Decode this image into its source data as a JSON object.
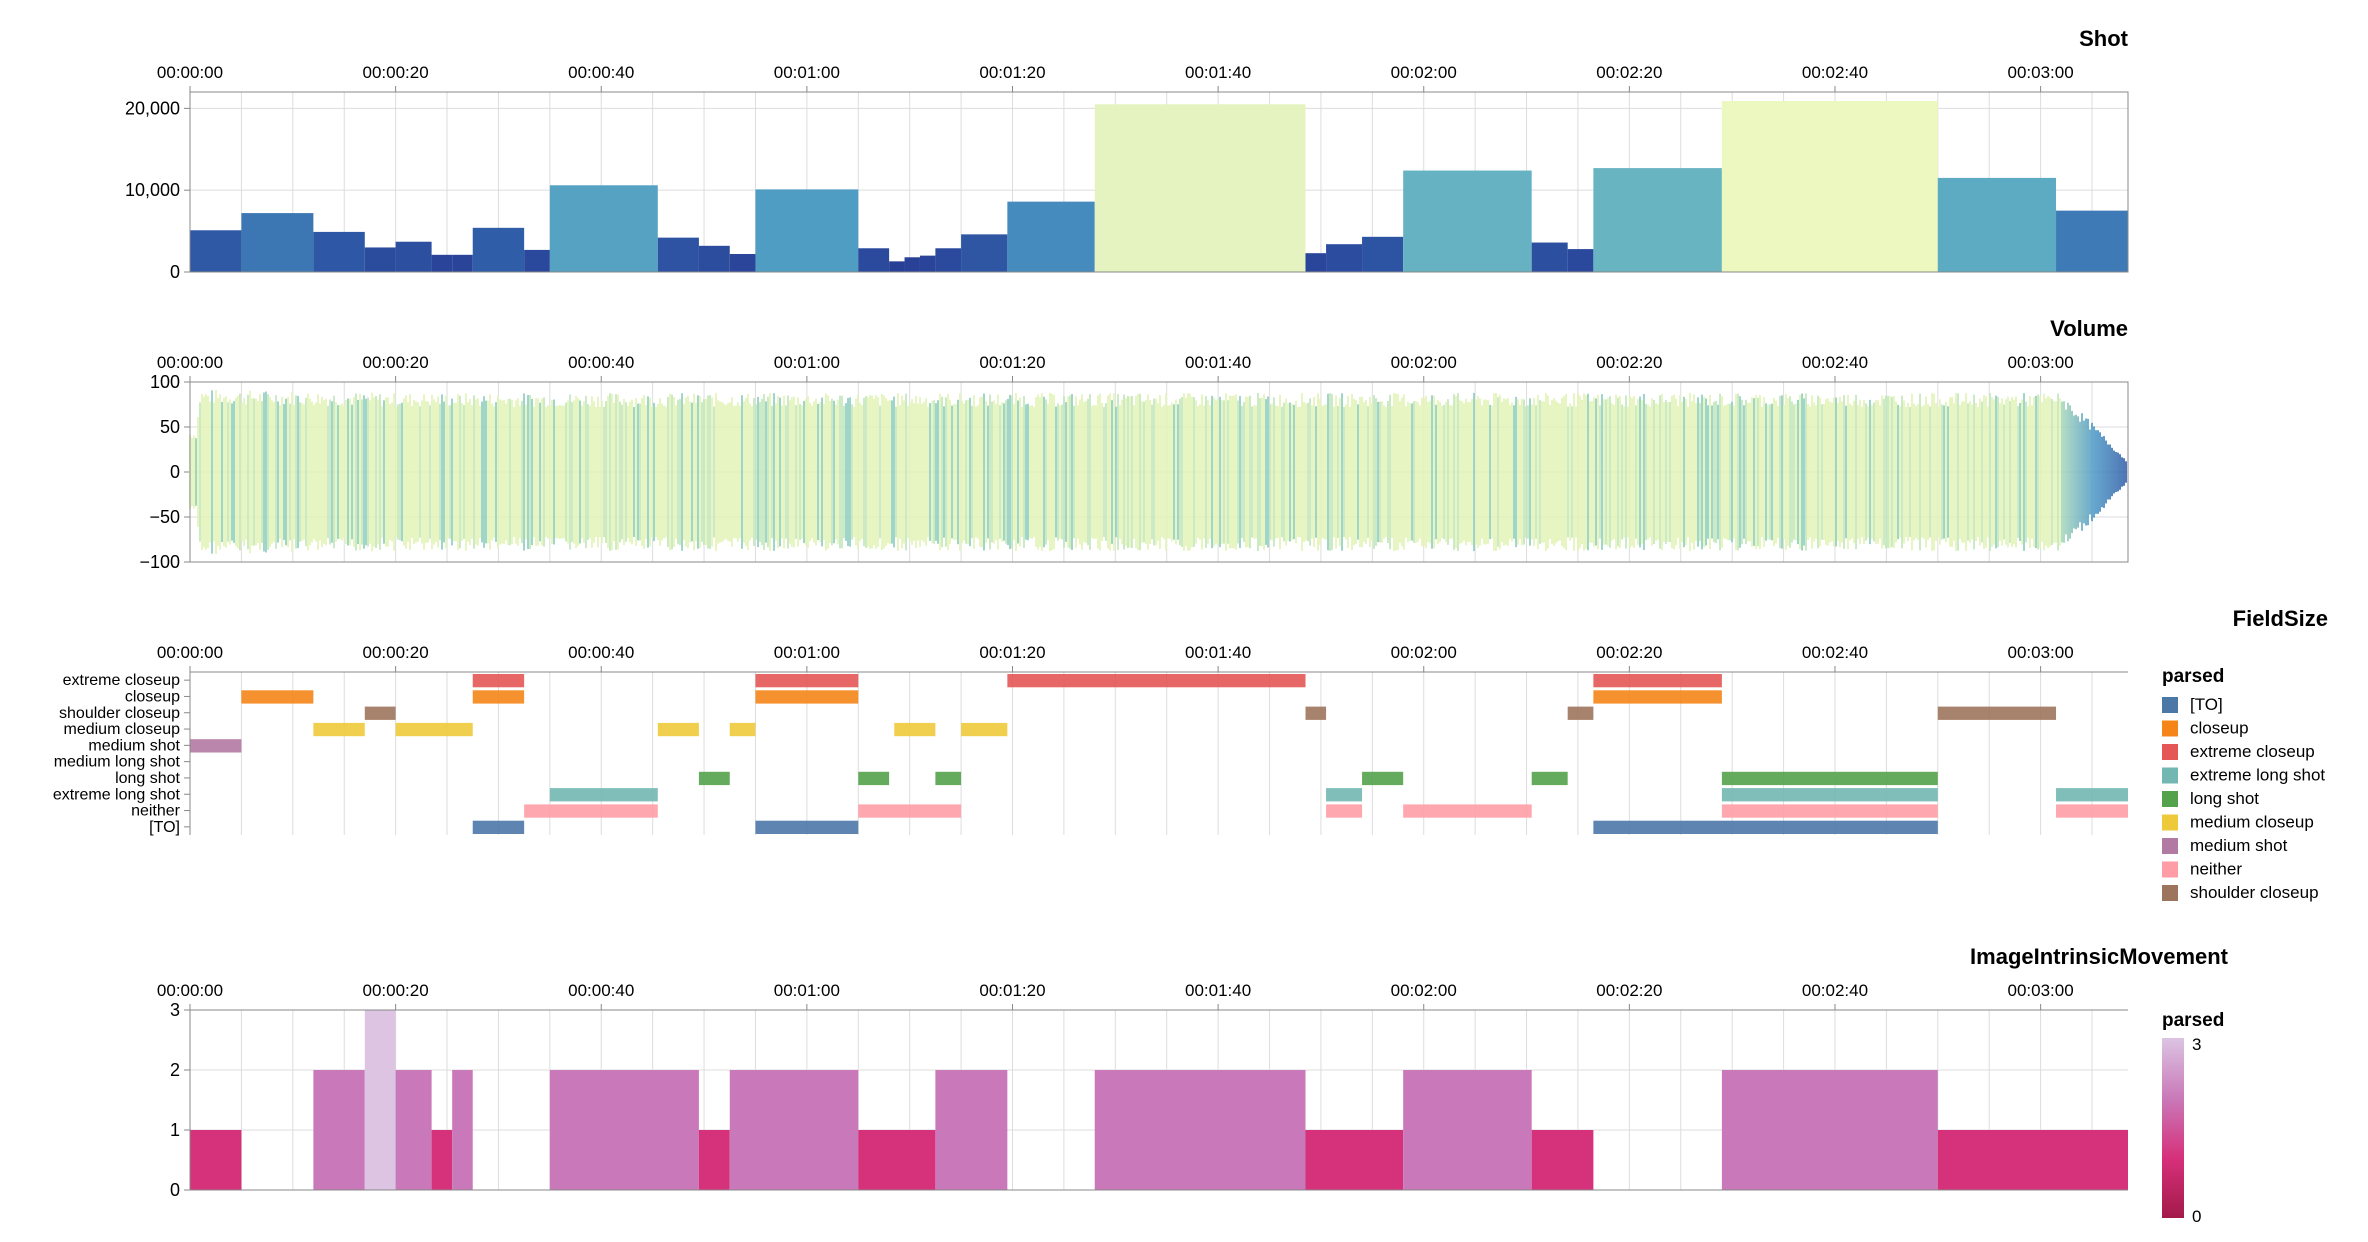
{
  "time_ticks": [
    "00:00:00",
    "00:00:20",
    "00:00:40",
    "00:01:00",
    "00:01:20",
    "00:01:40",
    "00:02:00",
    "00:02:20",
    "00:02:40",
    "00:03:00"
  ],
  "chart_data": [
    {
      "id": "shot",
      "type": "bar",
      "title": "Shot",
      "xlabel": "",
      "ylabel": "",
      "x_unit": "seconds",
      "xlim": [
        0,
        188.5
      ],
      "ylim": [
        0,
        22000
      ],
      "y_ticks": [
        0,
        10000,
        20000
      ],
      "y_tick_labels": [
        "0",
        "10,000",
        "20,000"
      ],
      "grid": true,
      "color_scale": "yellow-green-blue by value",
      "shots": [
        {
          "start": 0,
          "end": 5,
          "value": 5100
        },
        {
          "start": 5,
          "end": 12,
          "value": 7200
        },
        {
          "start": 12,
          "end": 17,
          "value": 4900
        },
        {
          "start": 17,
          "end": 20,
          "value": 3000
        },
        {
          "start": 20,
          "end": 23.5,
          "value": 3700
        },
        {
          "start": 23.5,
          "end": 25.5,
          "value": 2100
        },
        {
          "start": 25.5,
          "end": 27.5,
          "value": 2100
        },
        {
          "start": 27.5,
          "end": 32.5,
          "value": 5400
        },
        {
          "start": 32.5,
          "end": 35,
          "value": 2700
        },
        {
          "start": 35,
          "end": 45.5,
          "value": 10600
        },
        {
          "start": 45.5,
          "end": 49.5,
          "value": 4200
        },
        {
          "start": 49.5,
          "end": 52.5,
          "value": 3200
        },
        {
          "start": 52.5,
          "end": 55,
          "value": 2200
        },
        {
          "start": 55,
          "end": 65,
          "value": 10100
        },
        {
          "start": 65,
          "end": 68,
          "value": 2900
        },
        {
          "start": 68,
          "end": 69.5,
          "value": 1300
        },
        {
          "start": 69.5,
          "end": 71,
          "value": 1800
        },
        {
          "start": 71,
          "end": 72.5,
          "value": 2000
        },
        {
          "start": 72.5,
          "end": 75,
          "value": 2900
        },
        {
          "start": 75,
          "end": 79.5,
          "value": 4600
        },
        {
          "start": 79.5,
          "end": 88,
          "value": 8600
        },
        {
          "start": 88,
          "end": 108.5,
          "value": 20500
        },
        {
          "start": 108.5,
          "end": 110.5,
          "value": 2300
        },
        {
          "start": 110.5,
          "end": 114,
          "value": 3400
        },
        {
          "start": 114,
          "end": 118,
          "value": 4300
        },
        {
          "start": 118,
          "end": 130.5,
          "value": 12400
        },
        {
          "start": 130.5,
          "end": 134,
          "value": 3600
        },
        {
          "start": 134,
          "end": 136.5,
          "value": 2800
        },
        {
          "start": 136.5,
          "end": 149,
          "value": 12700
        },
        {
          "start": 149,
          "end": 170,
          "value": 20900
        },
        {
          "start": 170,
          "end": 181.5,
          "value": 11500
        },
        {
          "start": 181.5,
          "end": 188.5,
          "value": 7500
        }
      ]
    },
    {
      "id": "volume",
      "type": "area",
      "title": "Volume",
      "xlabel": "",
      "ylabel": "",
      "x_unit": "seconds",
      "xlim": [
        0,
        188.5
      ],
      "ylim": [
        -100,
        100
      ],
      "y_ticks": [
        -100,
        -50,
        0,
        50,
        100
      ],
      "y_tick_labels": [
        "−100",
        "−50",
        "0",
        "50",
        "100"
      ],
      "grid": true,
      "amplitude_envelope": [
        {
          "t": 0,
          "amp": 45
        },
        {
          "t": 0.6,
          "amp": 45
        },
        {
          "t": 1,
          "amp": 92
        },
        {
          "t": 20,
          "amp": 88
        },
        {
          "t": 60,
          "amp": 88
        },
        {
          "t": 100,
          "amp": 88
        },
        {
          "t": 140,
          "amp": 88
        },
        {
          "t": 182,
          "amp": 88
        },
        {
          "t": 185,
          "amp": 55
        },
        {
          "t": 188.5,
          "amp": 12
        }
      ]
    },
    {
      "id": "fieldsize",
      "type": "gantt",
      "title": "FieldSize",
      "xlabel": "",
      "ylabel": "",
      "x_unit": "seconds",
      "xlim": [
        0,
        188.5
      ],
      "grid": true,
      "categories": [
        "extreme closeup",
        "closeup",
        "shoulder closeup",
        "medium closeup",
        "medium shot",
        "medium long shot",
        "long shot",
        "extreme long shot",
        "neither",
        "[TO]"
      ],
      "legend_title": "parsed",
      "legend_position": "right",
      "legend": [
        {
          "label": "[TO]",
          "color": "#4c78a8"
        },
        {
          "label": "closeup",
          "color": "#f58518"
        },
        {
          "label": "extreme closeup",
          "color": "#e45756"
        },
        {
          "label": "extreme long shot",
          "color": "#72b7b2"
        },
        {
          "label": "long shot",
          "color": "#54a24b"
        },
        {
          "label": "medium closeup",
          "color": "#eeca3b"
        },
        {
          "label": "medium shot",
          "color": "#b279a2"
        },
        {
          "label": "neither",
          "color": "#ff9da6"
        },
        {
          "label": "shoulder closeup",
          "color": "#9d755d"
        }
      ],
      "segments": [
        {
          "cat": "medium shot",
          "start": 0,
          "end": 5
        },
        {
          "cat": "closeup",
          "start": 5,
          "end": 12
        },
        {
          "cat": "medium closeup",
          "start": 12,
          "end": 17
        },
        {
          "cat": "shoulder closeup",
          "start": 17,
          "end": 20
        },
        {
          "cat": "medium closeup",
          "start": 20,
          "end": 27.5
        },
        {
          "cat": "extreme closeup",
          "start": 27.5,
          "end": 32.5
        },
        {
          "cat": "closeup",
          "start": 27.5,
          "end": 32.5
        },
        {
          "cat": "[TO]",
          "start": 27.5,
          "end": 32.5
        },
        {
          "cat": "extreme long shot",
          "start": 35,
          "end": 45.5
        },
        {
          "cat": "neither",
          "start": 32.5,
          "end": 45.5
        },
        {
          "cat": "medium closeup",
          "start": 45.5,
          "end": 49.5
        },
        {
          "cat": "long shot",
          "start": 49.5,
          "end": 52.5
        },
        {
          "cat": "medium closeup",
          "start": 52.5,
          "end": 55
        },
        {
          "cat": "extreme closeup",
          "start": 55,
          "end": 65
        },
        {
          "cat": "closeup",
          "start": 55,
          "end": 65
        },
        {
          "cat": "[TO]",
          "start": 55,
          "end": 65
        },
        {
          "cat": "long shot",
          "start": 65,
          "end": 68
        },
        {
          "cat": "neither",
          "start": 65,
          "end": 75
        },
        {
          "cat": "medium closeup",
          "start": 68.5,
          "end": 72.5
        },
        {
          "cat": "long shot",
          "start": 72.5,
          "end": 75
        },
        {
          "cat": "medium closeup",
          "start": 75,
          "end": 79.5
        },
        {
          "cat": "extreme closeup",
          "start": 79.5,
          "end": 108.5
        },
        {
          "cat": "shoulder closeup",
          "start": 108.5,
          "end": 110.5
        },
        {
          "cat": "extreme long shot",
          "start": 110.5,
          "end": 114
        },
        {
          "cat": "neither",
          "start": 110.5,
          "end": 114
        },
        {
          "cat": "long shot",
          "start": 114,
          "end": 118
        },
        {
          "cat": "neither",
          "start": 118,
          "end": 130.5
        },
        {
          "cat": "long shot",
          "start": 130.5,
          "end": 134
        },
        {
          "cat": "shoulder closeup",
          "start": 134,
          "end": 136.5
        },
        {
          "cat": "extreme closeup",
          "start": 136.5,
          "end": 149
        },
        {
          "cat": "closeup",
          "start": 136.5,
          "end": 149
        },
        {
          "cat": "[TO]",
          "start": 136.5,
          "end": 170
        },
        {
          "cat": "long shot",
          "start": 149,
          "end": 170
        },
        {
          "cat": "extreme long shot",
          "start": 149,
          "end": 170
        },
        {
          "cat": "neither",
          "start": 149,
          "end": 170
        },
        {
          "cat": "shoulder closeup",
          "start": 170,
          "end": 181.5
        },
        {
          "cat": "extreme long shot",
          "start": 181.5,
          "end": 188.5
        },
        {
          "cat": "neither",
          "start": 181.5,
          "end": 188.5
        }
      ]
    },
    {
      "id": "movement",
      "type": "bar",
      "title": "ImageIntrinsicMovement",
      "xlabel": "",
      "ylabel": "",
      "x_unit": "seconds",
      "xlim": [
        0,
        188.5
      ],
      "ylim": [
        0,
        3
      ],
      "y_ticks": [
        0,
        1,
        2,
        3
      ],
      "y_tick_labels": [
        "0",
        "1",
        "2",
        "3"
      ],
      "grid": true,
      "legend_title": "parsed",
      "legend_position": "right",
      "legend_range": [
        0,
        3
      ],
      "color_scale": "magenta-to-lavender by value",
      "shots": [
        {
          "start": 0,
          "end": 5,
          "value": 1
        },
        {
          "start": 12,
          "end": 17,
          "value": 2
        },
        {
          "start": 17,
          "end": 20,
          "value": 3
        },
        {
          "start": 20,
          "end": 23.5,
          "value": 2
        },
        {
          "start": 23.5,
          "end": 25.5,
          "value": 1
        },
        {
          "start": 25.5,
          "end": 27.5,
          "value": 2
        },
        {
          "start": 35,
          "end": 49.5,
          "value": 2
        },
        {
          "start": 49.5,
          "end": 52.5,
          "value": 1
        },
        {
          "start": 52.5,
          "end": 65,
          "value": 2
        },
        {
          "start": 65,
          "end": 72.5,
          "value": 1
        },
        {
          "start": 72.5,
          "end": 79.5,
          "value": 2
        },
        {
          "start": 88,
          "end": 108.5,
          "value": 2
        },
        {
          "start": 108.5,
          "end": 118,
          "value": 1
        },
        {
          "start": 118,
          "end": 130.5,
          "value": 2
        },
        {
          "start": 130.5,
          "end": 136.5,
          "value": 1
        },
        {
          "start": 149,
          "end": 170,
          "value": 2
        },
        {
          "start": 170,
          "end": 188.5,
          "value": 1
        }
      ]
    }
  ]
}
